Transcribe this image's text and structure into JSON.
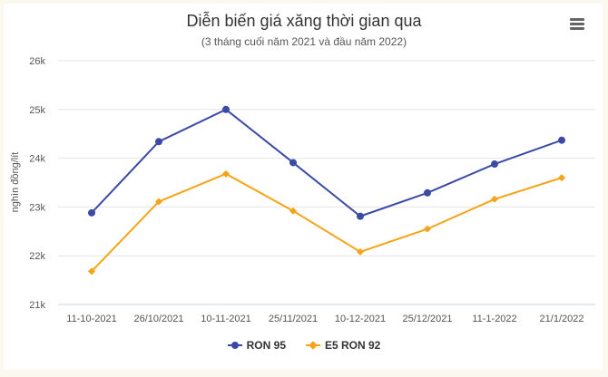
{
  "header": {
    "title": "Diễn biến giá xăng thời gian qua",
    "subtitle": "(3 tháng cuối năm 2021 và đầu năm 2022)",
    "menu_icon": "hamburger-menu-icon"
  },
  "chart_data": {
    "type": "line",
    "title": "Diễn biến giá xăng thời gian qua",
    "subtitle": "(3 tháng cuối năm 2021 và đầu năm 2022)",
    "xlabel": "",
    "ylabel": "nghìn đồng/lít",
    "categories": [
      "11-10-2021",
      "26/10/2021",
      "10-11-2021",
      "25/11/2021",
      "10-12-2021",
      "25/12/2021",
      "11-1-2022",
      "21/1/2022"
    ],
    "ylim": [
      21000,
      26000
    ],
    "yticks": [
      21000,
      22000,
      23000,
      24000,
      25000,
      26000
    ],
    "ytick_labels": [
      "21k",
      "22k",
      "23k",
      "24k",
      "25k",
      "26k"
    ],
    "grid": true,
    "legend_position": "bottom-center",
    "series": [
      {
        "name": "RON 95",
        "color": "#3b4ba5",
        "marker": "circle",
        "values": [
          22880,
          24340,
          25000,
          23910,
          22810,
          23290,
          23880,
          24370
        ]
      },
      {
        "name": "E5 RON 92",
        "color": "#f6a417",
        "marker": "diamond",
        "values": [
          21680,
          23110,
          23680,
          22920,
          22080,
          22550,
          23160,
          23600
        ]
      }
    ]
  },
  "colors": {
    "grid": "#e6e6e6",
    "axis_line": "#ccd6eb",
    "page_background": "#fbf8f0"
  }
}
